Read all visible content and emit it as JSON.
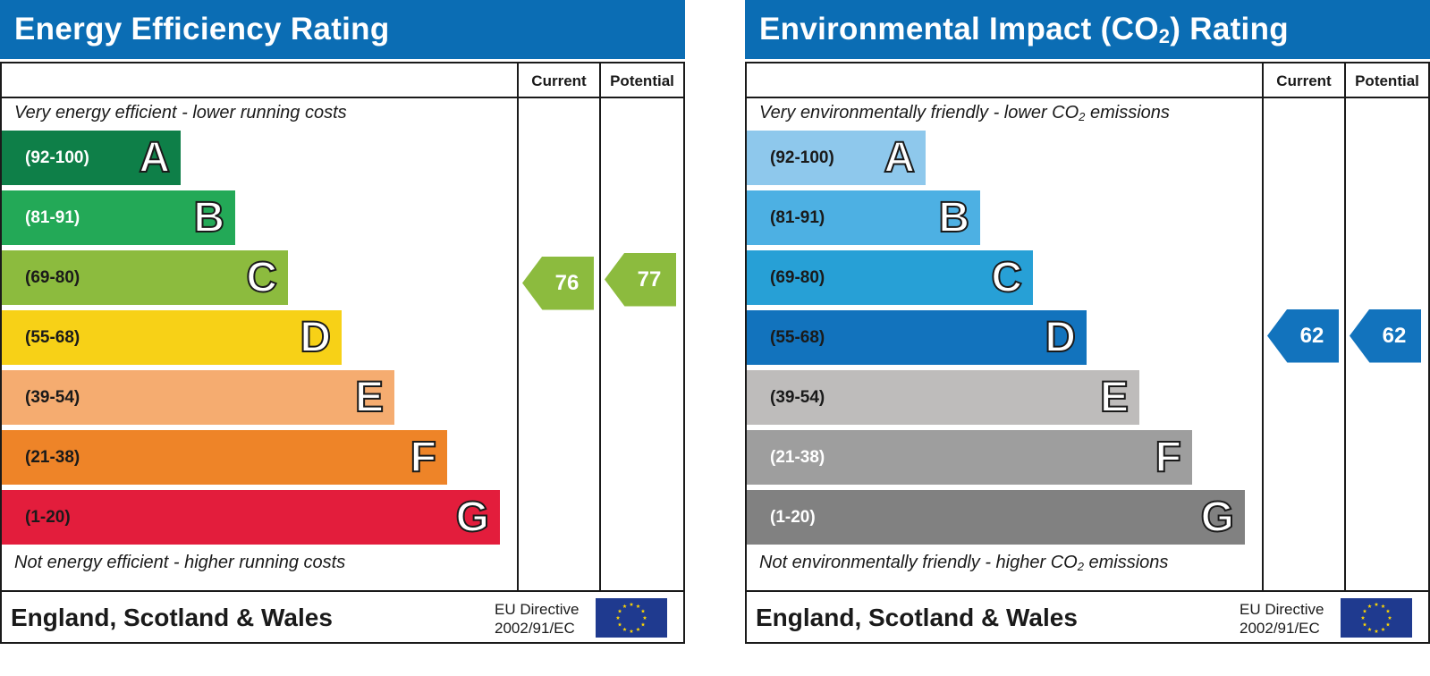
{
  "colors": {
    "title_bar": "#0b6db4",
    "eu_flag": "#1f3a8f",
    "eu_stars": "#ffd700"
  },
  "chart_data": [
    {
      "type": "bar",
      "title": "Energy Efficiency Rating",
      "columns": [
        "Current",
        "Potential"
      ],
      "top_caption": "Very energy efficient - lower running costs",
      "bottom_caption": "Not energy efficient - higher running costs",
      "bands": [
        {
          "range": "(92-100)",
          "letter": "A",
          "color": "#0e7f48",
          "text_color": "#ffffff"
        },
        {
          "range": "(81-91)",
          "letter": "B",
          "color": "#23a957",
          "text_color": "#ffffff"
        },
        {
          "range": "(69-80)",
          "letter": "C",
          "color": "#8cbb3e",
          "text_color": "#1a1a1a"
        },
        {
          "range": "(55-68)",
          "letter": "D",
          "color": "#f7d117",
          "text_color": "#1a1a1a"
        },
        {
          "range": "(39-54)",
          "letter": "E",
          "color": "#f5ac70",
          "text_color": "#1a1a1a"
        },
        {
          "range": "(21-38)",
          "letter": "F",
          "color": "#ee8428",
          "text_color": "#1a1a1a"
        },
        {
          "range": "(1-20)",
          "letter": "G",
          "color": "#e31d3c",
          "text_color": "#1a1a1a"
        }
      ],
      "current": {
        "value": 76,
        "band": "C",
        "color": "#8cbb3e"
      },
      "potential": {
        "value": 77,
        "band": "C",
        "color": "#8cbb3e"
      },
      "footer": "England, Scotland & Wales",
      "directive": [
        "EU Directive",
        "2002/91/EC"
      ]
    },
    {
      "type": "bar",
      "title": "Environmental Impact (CO₂) Rating",
      "columns": [
        "Current",
        "Potential"
      ],
      "top_caption": "Very environmentally friendly - lower CO₂ emissions",
      "bottom_caption": "Not environmentally friendly - higher CO₂ emissions",
      "bands": [
        {
          "range": "(92-100)",
          "letter": "A",
          "color": "#8ec8ec",
          "text_color": "#1a1a1a"
        },
        {
          "range": "(81-91)",
          "letter": "B",
          "color": "#4db0e3",
          "text_color": "#1a1a1a"
        },
        {
          "range": "(69-80)",
          "letter": "C",
          "color": "#27a0d6",
          "text_color": "#1a1a1a"
        },
        {
          "range": "(55-68)",
          "letter": "D",
          "color": "#1273bd",
          "text_color": "#1a1a1a"
        },
        {
          "range": "(39-54)",
          "letter": "E",
          "color": "#bebcbb",
          "text_color": "#1a1a1a"
        },
        {
          "range": "(21-38)",
          "letter": "F",
          "color": "#9e9e9e",
          "text_color": "#ffffff"
        },
        {
          "range": "(1-20)",
          "letter": "G",
          "color": "#818181",
          "text_color": "#ffffff"
        }
      ],
      "current": {
        "value": 62,
        "band": "D",
        "color": "#1273bd"
      },
      "potential": {
        "value": 62,
        "band": "D",
        "color": "#1273bd"
      },
      "footer": "England, Scotland & Wales",
      "directive": [
        "EU Directive",
        "2002/91/EC"
      ]
    }
  ]
}
